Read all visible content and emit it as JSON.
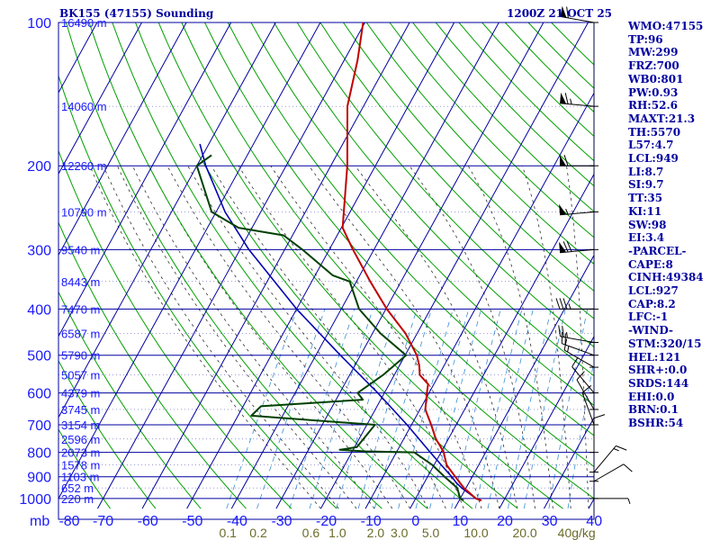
{
  "header": {
    "station": "BK155 (47155) Sounding",
    "time": "1200Z 21 OCT 25"
  },
  "indices": [
    "WMO:47155",
    "TP:96",
    "MW:299",
    "FRZ:700",
    "WB0:801",
    "PW:0.93",
    "RH:52.6",
    "MAXT:21.3",
    "TH:5570",
    "L57:4.7",
    "LCL:949",
    "LI:8.7",
    "SI:9.7",
    "TT:35",
    "KI:11",
    "SW:98",
    "EI:3.4",
    "-PARCEL-",
    "CAPE:8",
    "CINH:49384",
    "LCL:927",
    "CAP:8.2",
    "LFC:-1",
    "-WIND-",
    "STM:320/15",
    "HEL:121",
    "SHR+:0.0",
    "SRDS:144",
    "EHI:0.0",
    "BRN:0.1",
    "BSHR:54"
  ],
  "colors": {
    "isobar": "#0000a0",
    "isotherm": "#0000a0",
    "dry_adiabat": "#00a000",
    "moist_adiabat": "#303030",
    "mixing_ratio": "#3a8fd0",
    "temperature": "#c00000",
    "dewpoint": "#004000",
    "parcel": "#0000b0",
    "wind": "#000000"
  },
  "chart_data": {
    "type": "line",
    "skewt": true,
    "x_axis_unit": "mb",
    "x_tick_labels": [
      "-80",
      "-70",
      "-60",
      "-50",
      "-40",
      "-30",
      "-20",
      "-10",
      "0",
      "10",
      "20",
      "30",
      "40"
    ],
    "y_tick_labels": [
      "100",
      "200",
      "300",
      "400",
      "500",
      "600",
      "700",
      "800",
      "900",
      "1000"
    ],
    "pressure_levels": [
      100,
      200,
      300,
      400,
      500,
      600,
      700,
      800,
      900,
      1000
    ],
    "height_labels": [
      {
        "p": 100,
        "label": "16490 m"
      },
      {
        "p": 150,
        "label": "14060 m"
      },
      {
        "p": 200,
        "label": "12260 m"
      },
      {
        "p": 250,
        "label": "10790 m"
      },
      {
        "p": 300,
        "label": "9540 m"
      },
      {
        "p": 350,
        "label": "8443 m"
      },
      {
        "p": 400,
        "label": "7470 m"
      },
      {
        "p": 450,
        "label": "6587 m"
      },
      {
        "p": 500,
        "label": "5790 m"
      },
      {
        "p": 550,
        "label": "5057 m"
      },
      {
        "p": 600,
        "label": "4379 m"
      },
      {
        "p": 650,
        "label": "3745 m"
      },
      {
        "p": 700,
        "label": "3154 m"
      },
      {
        "p": 750,
        "label": "2596 m"
      },
      {
        "p": 800,
        "label": "2073 m"
      },
      {
        "p": 850,
        "label": "1578 m"
      },
      {
        "p": 900,
        "label": "1103 m"
      },
      {
        "p": 950,
        "label": "652 m"
      },
      {
        "p": 1000,
        "label": "220 m"
      }
    ],
    "mixing_ratio_labels": [
      {
        "w": 0.1,
        "label": "0.1"
      },
      {
        "w": 0.2,
        "label": "0.2"
      },
      {
        "w": 0.6,
        "label": "0.6"
      },
      {
        "w": 1.0,
        "label": "1.0"
      },
      {
        "w": 2.0,
        "label": "2.0"
      },
      {
        "w": 3.0,
        "label": "3.0"
      },
      {
        "w": 5.0,
        "label": "5.0"
      },
      {
        "w": 10.0,
        "label": "10.0"
      },
      {
        "w": 20.0,
        "label": "20.0"
      },
      {
        "w": 40.0,
        "label": "40g/kg"
      }
    ],
    "mixing_ratio_lines": [
      0.1,
      0.2,
      0.4,
      0.6,
      1,
      1.5,
      2,
      3,
      4,
      5,
      7,
      10,
      12,
      16,
      20,
      28,
      36
    ],
    "temperature": [
      {
        "p": 1010,
        "t": 15.0
      },
      {
        "p": 1000,
        "t": 13.5
      },
      {
        "p": 950,
        "t": 9.5
      },
      {
        "p": 900,
        "t": 6.2
      },
      {
        "p": 850,
        "t": 2.8
      },
      {
        "p": 800,
        "t": 0.6
      },
      {
        "p": 775,
        "t": -1.0
      },
      {
        "p": 750,
        "t": -2.8
      },
      {
        "p": 700,
        "t": -5.6
      },
      {
        "p": 650,
        "t": -8.8
      },
      {
        "p": 600,
        "t": -10.5
      },
      {
        "p": 575,
        "t": -11.3
      },
      {
        "p": 550,
        "t": -14.3
      },
      {
        "p": 525,
        "t": -15.6
      },
      {
        "p": 500,
        "t": -17.4
      },
      {
        "p": 450,
        "t": -22.6
      },
      {
        "p": 400,
        "t": -29.8
      },
      {
        "p": 350,
        "t": -36.9
      },
      {
        "p": 300,
        "t": -44.7
      },
      {
        "p": 270,
        "t": -49.7
      },
      {
        "p": 250,
        "t": -51.4
      },
      {
        "p": 200,
        "t": -56.3
      },
      {
        "p": 150,
        "t": -63.6
      },
      {
        "p": 120,
        "t": -67.0
      },
      {
        "p": 100,
        "t": -70.4
      }
    ],
    "dewpoint": [
      {
        "p": 1010,
        "t": 11.0
      },
      {
        "p": 1000,
        "t": 10.0
      },
      {
        "p": 950,
        "t": 8.0
      },
      {
        "p": 900,
        "t": 3.8
      },
      {
        "p": 850,
        "t": -0.4
      },
      {
        "p": 800,
        "t": -6.0
      },
      {
        "p": 796,
        "t": -17.0
      },
      {
        "p": 790,
        "t": -23.0
      },
      {
        "p": 780,
        "t": -19.5
      },
      {
        "p": 700,
        "t": -18.2
      },
      {
        "p": 670,
        "t": -47.0
      },
      {
        "p": 640,
        "t": -46.0
      },
      {
        "p": 620,
        "t": -24.0
      },
      {
        "p": 600,
        "t": -26.0
      },
      {
        "p": 550,
        "t": -22.5
      },
      {
        "p": 500,
        "t": -19.8
      },
      {
        "p": 450,
        "t": -28.2
      },
      {
        "p": 400,
        "t": -36.0
      },
      {
        "p": 350,
        "t": -41.5
      },
      {
        "p": 340,
        "t": -46.0
      },
      {
        "p": 300,
        "t": -56.0
      },
      {
        "p": 280,
        "t": -62.0
      },
      {
        "p": 270,
        "t": -73.0
      },
      {
        "p": 250,
        "t": -81.0
      },
      {
        "p": 200,
        "t": -90.0
      },
      {
        "p": 190,
        "t": -88.0
      }
    ],
    "parcel": [
      {
        "p": 1010,
        "t": 15.0
      },
      {
        "p": 1000,
        "t": 13.5
      },
      {
        "p": 950,
        "t": 9.0
      },
      {
        "p": 927,
        "t": 7.2
      },
      {
        "p": 900,
        "t": 5.4
      },
      {
        "p": 850,
        "t": 1.6
      },
      {
        "p": 800,
        "t": -2.4
      },
      {
        "p": 700,
        "t": -11.0
      },
      {
        "p": 600,
        "t": -21.5
      },
      {
        "p": 500,
        "t": -34.5
      },
      {
        "p": 400,
        "t": -50.0
      },
      {
        "p": 300,
        "t": -68.0
      },
      {
        "p": 250,
        "t": -78.0
      },
      {
        "p": 200,
        "t": -88.0
      },
      {
        "p": 180,
        "t": -92.0
      }
    ],
    "wind_barbs": [
      {
        "p": 100,
        "dir": 280,
        "spd": 60
      },
      {
        "p": 150,
        "dir": 275,
        "spd": 65
      },
      {
        "p": 200,
        "dir": 270,
        "spd": 60
      },
      {
        "p": 250,
        "dir": 265,
        "spd": 55
      },
      {
        "p": 300,
        "dir": 265,
        "spd": 70
      },
      {
        "p": 400,
        "dir": 270,
        "spd": 35
      },
      {
        "p": 470,
        "dir": 280,
        "spd": 25
      },
      {
        "p": 500,
        "dir": 290,
        "spd": 20
      },
      {
        "p": 530,
        "dir": 300,
        "spd": 15
      },
      {
        "p": 600,
        "dir": 320,
        "spd": 10
      },
      {
        "p": 650,
        "dir": 330,
        "spd": 10
      },
      {
        "p": 700,
        "dir": 340,
        "spd": 10
      },
      {
        "p": 800,
        "dir": 0,
        "spd": 10
      },
      {
        "p": 880,
        "dir": 40,
        "spd": 15
      },
      {
        "p": 920,
        "dir": 60,
        "spd": 10
      },
      {
        "p": 1000,
        "dir": 90,
        "spd": 5
      }
    ],
    "ylim": [
      100,
      1050
    ],
    "xlim": [
      -80,
      40
    ],
    "grid": true,
    "y_scale": "log"
  }
}
